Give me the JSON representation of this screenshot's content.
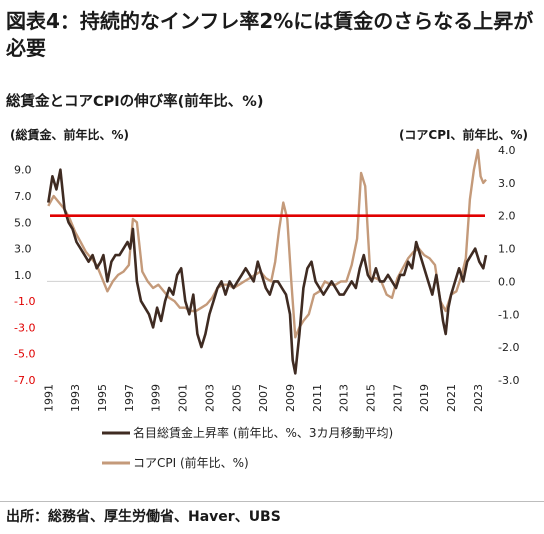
{
  "title": "図表4：持続的なインフレ率2%には賃金のさらなる上昇が必要",
  "subtitle": "総賃金とコアCPIの伸び率(前年比、%)",
  "source": "出所：総務省、厚生労働省、Haver、UBS",
  "chart_data": {
    "type": "line",
    "left_axis_label": "(総賃金、前年比、%)",
    "right_axis_label": "(コアCPI、前年比、%)",
    "left_ticks": [
      "9.0",
      "7.0",
      "5.0",
      "3.0",
      "1.0",
      "-1.0",
      "-3.0",
      "-5.0",
      "-7.0"
    ],
    "left_tick_values": [
      9,
      7,
      5,
      3,
      1,
      -1,
      -3,
      -5,
      -7
    ],
    "right_ticks": [
      "4.0",
      "3.0",
      "2.0",
      "1.0",
      "0.0",
      "-1.0",
      "-2.0",
      "-3.0"
    ],
    "right_tick_values": [
      4,
      3,
      2,
      1,
      0,
      -1,
      -2,
      -3
    ],
    "x_ticks": [
      "1991",
      "1993",
      "1995",
      "1997",
      "1999",
      "2001",
      "2003",
      "2005",
      "2007",
      "2009",
      "2011",
      "2013",
      "2015",
      "2017",
      "2019",
      "2021",
      "2023"
    ],
    "x_tick_values": [
      1991,
      1993,
      1995,
      1997,
      1999,
      2001,
      2003,
      2005,
      2007,
      2009,
      2011,
      2013,
      2015,
      2017,
      2019,
      2021,
      2023
    ],
    "xlim": [
      1990.9,
      2023.9
    ],
    "ylim_left": [
      -7,
      10.5
    ],
    "ylim_right": [
      -3,
      4
    ],
    "reference_line": {
      "axis": "right",
      "value": 2.0,
      "color": "#e00000"
    },
    "series": [
      {
        "name": "名目総賃金上昇率 (前年比、%、3カ月移動平均)",
        "axis": "left",
        "color": "#3f2b22",
        "x": [
          1991.0,
          1991.3,
          1991.6,
          1991.9,
          1992.2,
          1992.5,
          1992.8,
          1993.1,
          1993.4,
          1993.7,
          1994.0,
          1994.3,
          1994.6,
          1994.9,
          1995.1,
          1995.4,
          1995.7,
          1996.0,
          1996.3,
          1996.6,
          1996.9,
          1997.1,
          1997.3,
          1997.6,
          1997.9,
          1998.2,
          1998.5,
          1998.8,
          1999.1,
          1999.4,
          1999.7,
          2000.0,
          2000.3,
          2000.6,
          2000.9,
          2001.2,
          2001.5,
          2001.8,
          2002.1,
          2002.4,
          2002.7,
          2003.0,
          2003.3,
          2003.6,
          2003.9,
          2004.2,
          2004.5,
          2004.8,
          2005.1,
          2005.4,
          2005.7,
          2006.0,
          2006.3,
          2006.6,
          2006.9,
          2007.2,
          2007.5,
          2007.8,
          2008.1,
          2008.4,
          2008.7,
          2009.0,
          2009.2,
          2009.4,
          2009.7,
          2010.0,
          2010.3,
          2010.6,
          2010.9,
          2011.2,
          2011.5,
          2011.8,
          2012.1,
          2012.4,
          2012.7,
          2013.0,
          2013.3,
          2013.6,
          2013.9,
          2014.2,
          2014.5,
          2014.8,
          2015.1,
          2015.4,
          2015.7,
          2016.0,
          2016.3,
          2016.6,
          2016.9,
          2017.2,
          2017.5,
          2017.8,
          2018.1,
          2018.4,
          2018.7,
          2019.0,
          2019.3,
          2019.6,
          2019.9,
          2020.2,
          2020.4,
          2020.6,
          2020.8,
          2021.0,
          2021.3,
          2021.6,
          2021.9,
          2022.2,
          2022.5,
          2022.8,
          2023.1,
          2023.4,
          2023.6
        ],
        "values": [
          6.5,
          8.5,
          7.5,
          9.0,
          6.0,
          5.0,
          4.5,
          3.5,
          3.0,
          2.5,
          2.0,
          2.5,
          1.5,
          2.0,
          2.5,
          0.5,
          2.0,
          2.5,
          2.5,
          3.0,
          3.5,
          3.0,
          4.5,
          0.5,
          -1.0,
          -1.5,
          -2.0,
          -3.0,
          -1.5,
          -2.5,
          -1.0,
          0.0,
          -0.5,
          1.0,
          1.5,
          -1.0,
          -2.0,
          -0.5,
          -3.5,
          -4.5,
          -3.5,
          -2.0,
          -1.0,
          0.0,
          0.5,
          -0.5,
          0.5,
          0.0,
          0.5,
          1.0,
          1.5,
          1.0,
          0.5,
          2.0,
          1.0,
          0.0,
          -0.5,
          0.5,
          0.5,
          0.0,
          -0.5,
          -2.0,
          -5.5,
          -6.5,
          -3.5,
          0.0,
          1.5,
          2.0,
          0.5,
          0.0,
          -0.5,
          0.0,
          0.5,
          0.0,
          -0.5,
          -0.5,
          0.0,
          0.5,
          0.0,
          1.5,
          2.5,
          1.0,
          0.5,
          1.5,
          0.5,
          0.5,
          1.0,
          0.5,
          0.0,
          1.0,
          1.0,
          2.0,
          1.5,
          3.5,
          2.5,
          1.5,
          0.5,
          -0.5,
          1.0,
          -1.0,
          -2.5,
          -3.5,
          -1.5,
          -0.5,
          0.5,
          1.5,
          0.5,
          2.0,
          2.5,
          3.0,
          2.0,
          1.5,
          2.5
        ]
      },
      {
        "name": "コアCPI (前年比、%)",
        "axis": "right",
        "color": "#c49a7a",
        "x": [
          1991.0,
          1991.4,
          1991.8,
          1992.2,
          1992.6,
          1993.0,
          1993.4,
          1993.8,
          1994.2,
          1994.6,
          1995.0,
          1995.4,
          1995.8,
          1996.2,
          1996.6,
          1997.0,
          1997.3,
          1997.6,
          1998.0,
          1998.4,
          1998.8,
          1999.2,
          1999.6,
          2000.0,
          2000.4,
          2000.8,
          2001.2,
          2001.6,
          2002.0,
          2002.4,
          2002.8,
          2003.2,
          2003.6,
          2004.0,
          2004.4,
          2004.8,
          2005.2,
          2005.6,
          2006.0,
          2006.4,
          2006.8,
          2007.2,
          2007.6,
          2007.9,
          2008.2,
          2008.5,
          2008.8,
          2009.1,
          2009.4,
          2009.7,
          2010.0,
          2010.4,
          2010.8,
          2011.2,
          2011.6,
          2012.0,
          2012.4,
          2012.8,
          2013.2,
          2013.6,
          2014.0,
          2014.3,
          2014.6,
          2015.0,
          2015.4,
          2015.8,
          2016.2,
          2016.6,
          2017.0,
          2017.4,
          2017.8,
          2018.2,
          2018.6,
          2019.0,
          2019.4,
          2019.8,
          2020.2,
          2020.6,
          2021.0,
          2021.4,
          2021.8,
          2022.1,
          2022.4,
          2022.7,
          2023.0,
          2023.2,
          2023.4,
          2023.6
        ],
        "values": [
          2.3,
          2.6,
          2.4,
          2.2,
          1.9,
          1.5,
          1.2,
          0.9,
          0.7,
          0.5,
          0.1,
          -0.3,
          0.0,
          0.2,
          0.3,
          0.5,
          1.9,
          1.8,
          0.3,
          0.0,
          -0.2,
          -0.1,
          -0.3,
          -0.5,
          -0.6,
          -0.8,
          -0.8,
          -0.9,
          -0.9,
          -0.8,
          -0.7,
          -0.5,
          -0.2,
          -0.1,
          -0.1,
          -0.2,
          -0.1,
          0.0,
          0.1,
          0.2,
          0.3,
          0.1,
          0.0,
          0.6,
          1.6,
          2.4,
          1.9,
          0.0,
          -1.7,
          -1.4,
          -1.2,
          -1.0,
          -0.4,
          -0.3,
          0.0,
          -0.1,
          -0.1,
          0.0,
          0.0,
          0.5,
          1.3,
          3.3,
          2.9,
          0.1,
          0.1,
          0.0,
          -0.4,
          -0.5,
          0.1,
          0.4,
          0.7,
          0.9,
          1.0,
          0.8,
          0.7,
          0.5,
          -0.6,
          -0.9,
          -0.4,
          -0.3,
          0.2,
          0.7,
          2.5,
          3.4,
          4.0,
          3.2,
          3.0,
          3.1
        ]
      }
    ]
  }
}
